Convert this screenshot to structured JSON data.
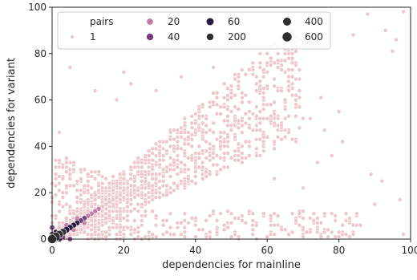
{
  "chart_data": {
    "type": "scatter",
    "title": "",
    "xlabel": "dependencies for mainline",
    "ylabel": "dependencies for variant",
    "xlim": [
      0,
      100
    ],
    "ylim": [
      0,
      100
    ],
    "xticks": [
      "0",
      "20",
      "40",
      "60",
      "80",
      "100"
    ],
    "yticks": [
      "0",
      "20",
      "40",
      "60",
      "80",
      "100"
    ],
    "grid": false,
    "legend": {
      "title": "pairs",
      "placement": "top-left",
      "items": [
        {
          "label": "1",
          "color": "#ecc8cc",
          "size": 1
        },
        {
          "label": "20",
          "color": "#c47aa6",
          "size": 20
        },
        {
          "label": "40",
          "color": "#7a3d7c",
          "size": 40
        },
        {
          "label": "60",
          "color": "#2a1b43",
          "size": 60
        },
        {
          "label": "200",
          "color": "#2f2f2f",
          "size": 200
        },
        {
          "label": "400",
          "color": "#2f2f2f",
          "size": 400
        },
        {
          "label": "600",
          "color": "#2f2f2f",
          "size": 600
        }
      ]
    },
    "series": [
      {
        "color_by": "pairs",
        "points": [
          {
            "x": 1,
            "y": 1,
            "pairs": 600
          },
          {
            "x": 2,
            "y": 2,
            "pairs": 400
          },
          {
            "x": 3,
            "y": 3,
            "pairs": 250
          },
          {
            "x": 4,
            "y": 4,
            "pairs": 180
          },
          {
            "x": 5,
            "y": 5,
            "pairs": 120
          },
          {
            "x": 6,
            "y": 6,
            "pairs": 90
          },
          {
            "x": 7,
            "y": 7,
            "pairs": 70
          },
          {
            "x": 8,
            "y": 8,
            "pairs": 55
          },
          {
            "x": 9,
            "y": 9,
            "pairs": 45
          },
          {
            "x": 10,
            "y": 10,
            "pairs": 38
          },
          {
            "x": 11,
            "y": 11,
            "pairs": 30
          },
          {
            "x": 12,
            "y": 12,
            "pairs": 25
          },
          {
            "x": 13,
            "y": 13,
            "pairs": 20
          },
          {
            "x": 14,
            "y": 14,
            "pairs": 16
          },
          {
            "x": 15,
            "y": 15,
            "pairs": 12
          },
          {
            "x": 16,
            "y": 16,
            "pairs": 9
          },
          {
            "x": 17,
            "y": 17,
            "pairs": 7
          },
          {
            "x": 18,
            "y": 18,
            "pairs": 5
          },
          {
            "x": 0,
            "y": 2,
            "pairs": 90
          },
          {
            "x": 2,
            "y": 0,
            "pairs": 80
          },
          {
            "x": 1,
            "y": 3,
            "pairs": 60
          },
          {
            "x": 3,
            "y": 1,
            "pairs": 50
          },
          {
            "x": 0,
            "y": 5,
            "pairs": 40
          },
          {
            "x": 5,
            "y": 0,
            "pairs": 40
          },
          {
            "x": 4,
            "y": 6,
            "pairs": 35
          },
          {
            "x": 6,
            "y": 4,
            "pairs": 30
          },
          {
            "x": 7,
            "y": 9,
            "pairs": 22
          },
          {
            "x": 9,
            "y": 7,
            "pairs": 20
          },
          {
            "x": 2,
            "y": 5,
            "pairs": 18
          },
          {
            "x": 5,
            "y": 2,
            "pairs": 18
          },
          {
            "x": 10,
            "y": 12,
            "pairs": 14
          },
          {
            "x": 12,
            "y": 10,
            "pairs": 12
          },
          {
            "x": 8,
            "y": 4,
            "pairs": 10
          },
          {
            "x": 4,
            "y": 9,
            "pairs": 9
          },
          {
            "x": 1,
            "y": 0,
            "pairs": 120
          },
          {
            "x": 0,
            "y": 1,
            "pairs": 120
          },
          {
            "x": 0,
            "y": 0,
            "pairs": 600
          }
        ]
      }
    ]
  }
}
